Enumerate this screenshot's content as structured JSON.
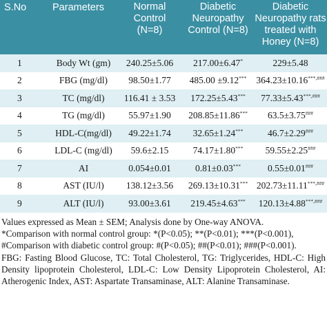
{
  "table": {
    "headers": {
      "sno": "S.No",
      "param": "Parameters",
      "normal": [
        "Normal",
        "Control",
        "(N=8)"
      ],
      "diabetic": [
        "Diabetic",
        "Neuropathy",
        "Control (N=8)"
      ],
      "honey": [
        "Diabetic",
        "Neuropathy rats",
        "treated with",
        "Honey (N=8)"
      ]
    },
    "rows": [
      {
        "sno": "1",
        "param": "Body Wt (gm)",
        "normal": "240.25±5.06",
        "normal_sup": "",
        "diabetic": "217.00±6.47",
        "diabetic_sup": "*",
        "honey": "229±5.48",
        "honey_sup": ""
      },
      {
        "sno": "2",
        "param": "FBG (mg/dl)",
        "normal": "98.50±1.77",
        "normal_sup": "",
        "diabetic": "485.00 ±9.12",
        "diabetic_sup": "***",
        "honey": "364.23±10.16",
        "honey_sup": "***,###"
      },
      {
        "sno": "3",
        "param": "TC (mg/dl)",
        "normal": "116.41 ± 3.53",
        "normal_sup": "",
        "diabetic": "172.25±5.43",
        "diabetic_sup": "***",
        "honey": "77.33±5.43",
        "honey_sup": "***,###"
      },
      {
        "sno": "4",
        "param": "TG (mg/dl)",
        "normal": "55.97±1.90",
        "normal_sup": "",
        "diabetic": "208.85±11.86",
        "diabetic_sup": "***",
        "honey": "63.5±3.75",
        "honey_sup": "###"
      },
      {
        "sno": "5",
        "param": "HDL-C(mg/dl)",
        "normal": "49.22±1.74",
        "normal_sup": "",
        "diabetic": "32.65±1.24",
        "diabetic_sup": "***",
        "honey": "46.7±2.29",
        "honey_sup": "###"
      },
      {
        "sno": "6",
        "param": "LDL-C (mg/dl)",
        "normal": "59.6±2.15",
        "normal_sup": "",
        "diabetic": "74.17±1.80",
        "diabetic_sup": "***",
        "honey": "59.55±2.25",
        "honey_sup": "###"
      },
      {
        "sno": "7",
        "param": "AI",
        "normal": "0.054±0.01",
        "normal_sup": "",
        "diabetic": "0.81±0.03",
        "diabetic_sup": "***",
        "honey": "0.55±0.01",
        "honey_sup": "###"
      },
      {
        "sno": "8",
        "param": "AST (IU/l)",
        "normal": "138.12±3.56",
        "normal_sup": "",
        "diabetic": "269.13±10.31",
        "diabetic_sup": "***",
        "honey": "202.73±11.11",
        "honey_sup": "***,###"
      },
      {
        "sno": "9",
        "param": "ALT (IU/l)",
        "normal": "93.00±3.61",
        "normal_sup": "",
        "diabetic": "219.45±4.63",
        "diabetic_sup": "***",
        "honey": "120.13±4.88",
        "honey_sup": "***,###"
      }
    ]
  },
  "notes": {
    "line1": "Values expressed as Mean ± SEM; Analysis done by One-way ANOVA.",
    "line2": "*Comparison with normal control group: *(P<0.05); **(P<0.01); ***(P<0.001),",
    "line3": "#Comparison with diabetic control group: #(P<0.05); ##(P<0.01); ###(P<0.001).",
    "abbrev": "FBG: Fasting Blood Glucose, TC: Total Cholesterol, TG: Triglycerides, HDL-C: High Density lipoprotein Cholesterol, LDL-C: Low Density Lipoprotein Cholesterol, AI: Atherogenic Index, AST: Aspartate Transaminase, ALT: Alanine Transaminase."
  },
  "colors": {
    "header_bg": "#3b8fa3",
    "stripe_bg": "#dfeff3"
  }
}
